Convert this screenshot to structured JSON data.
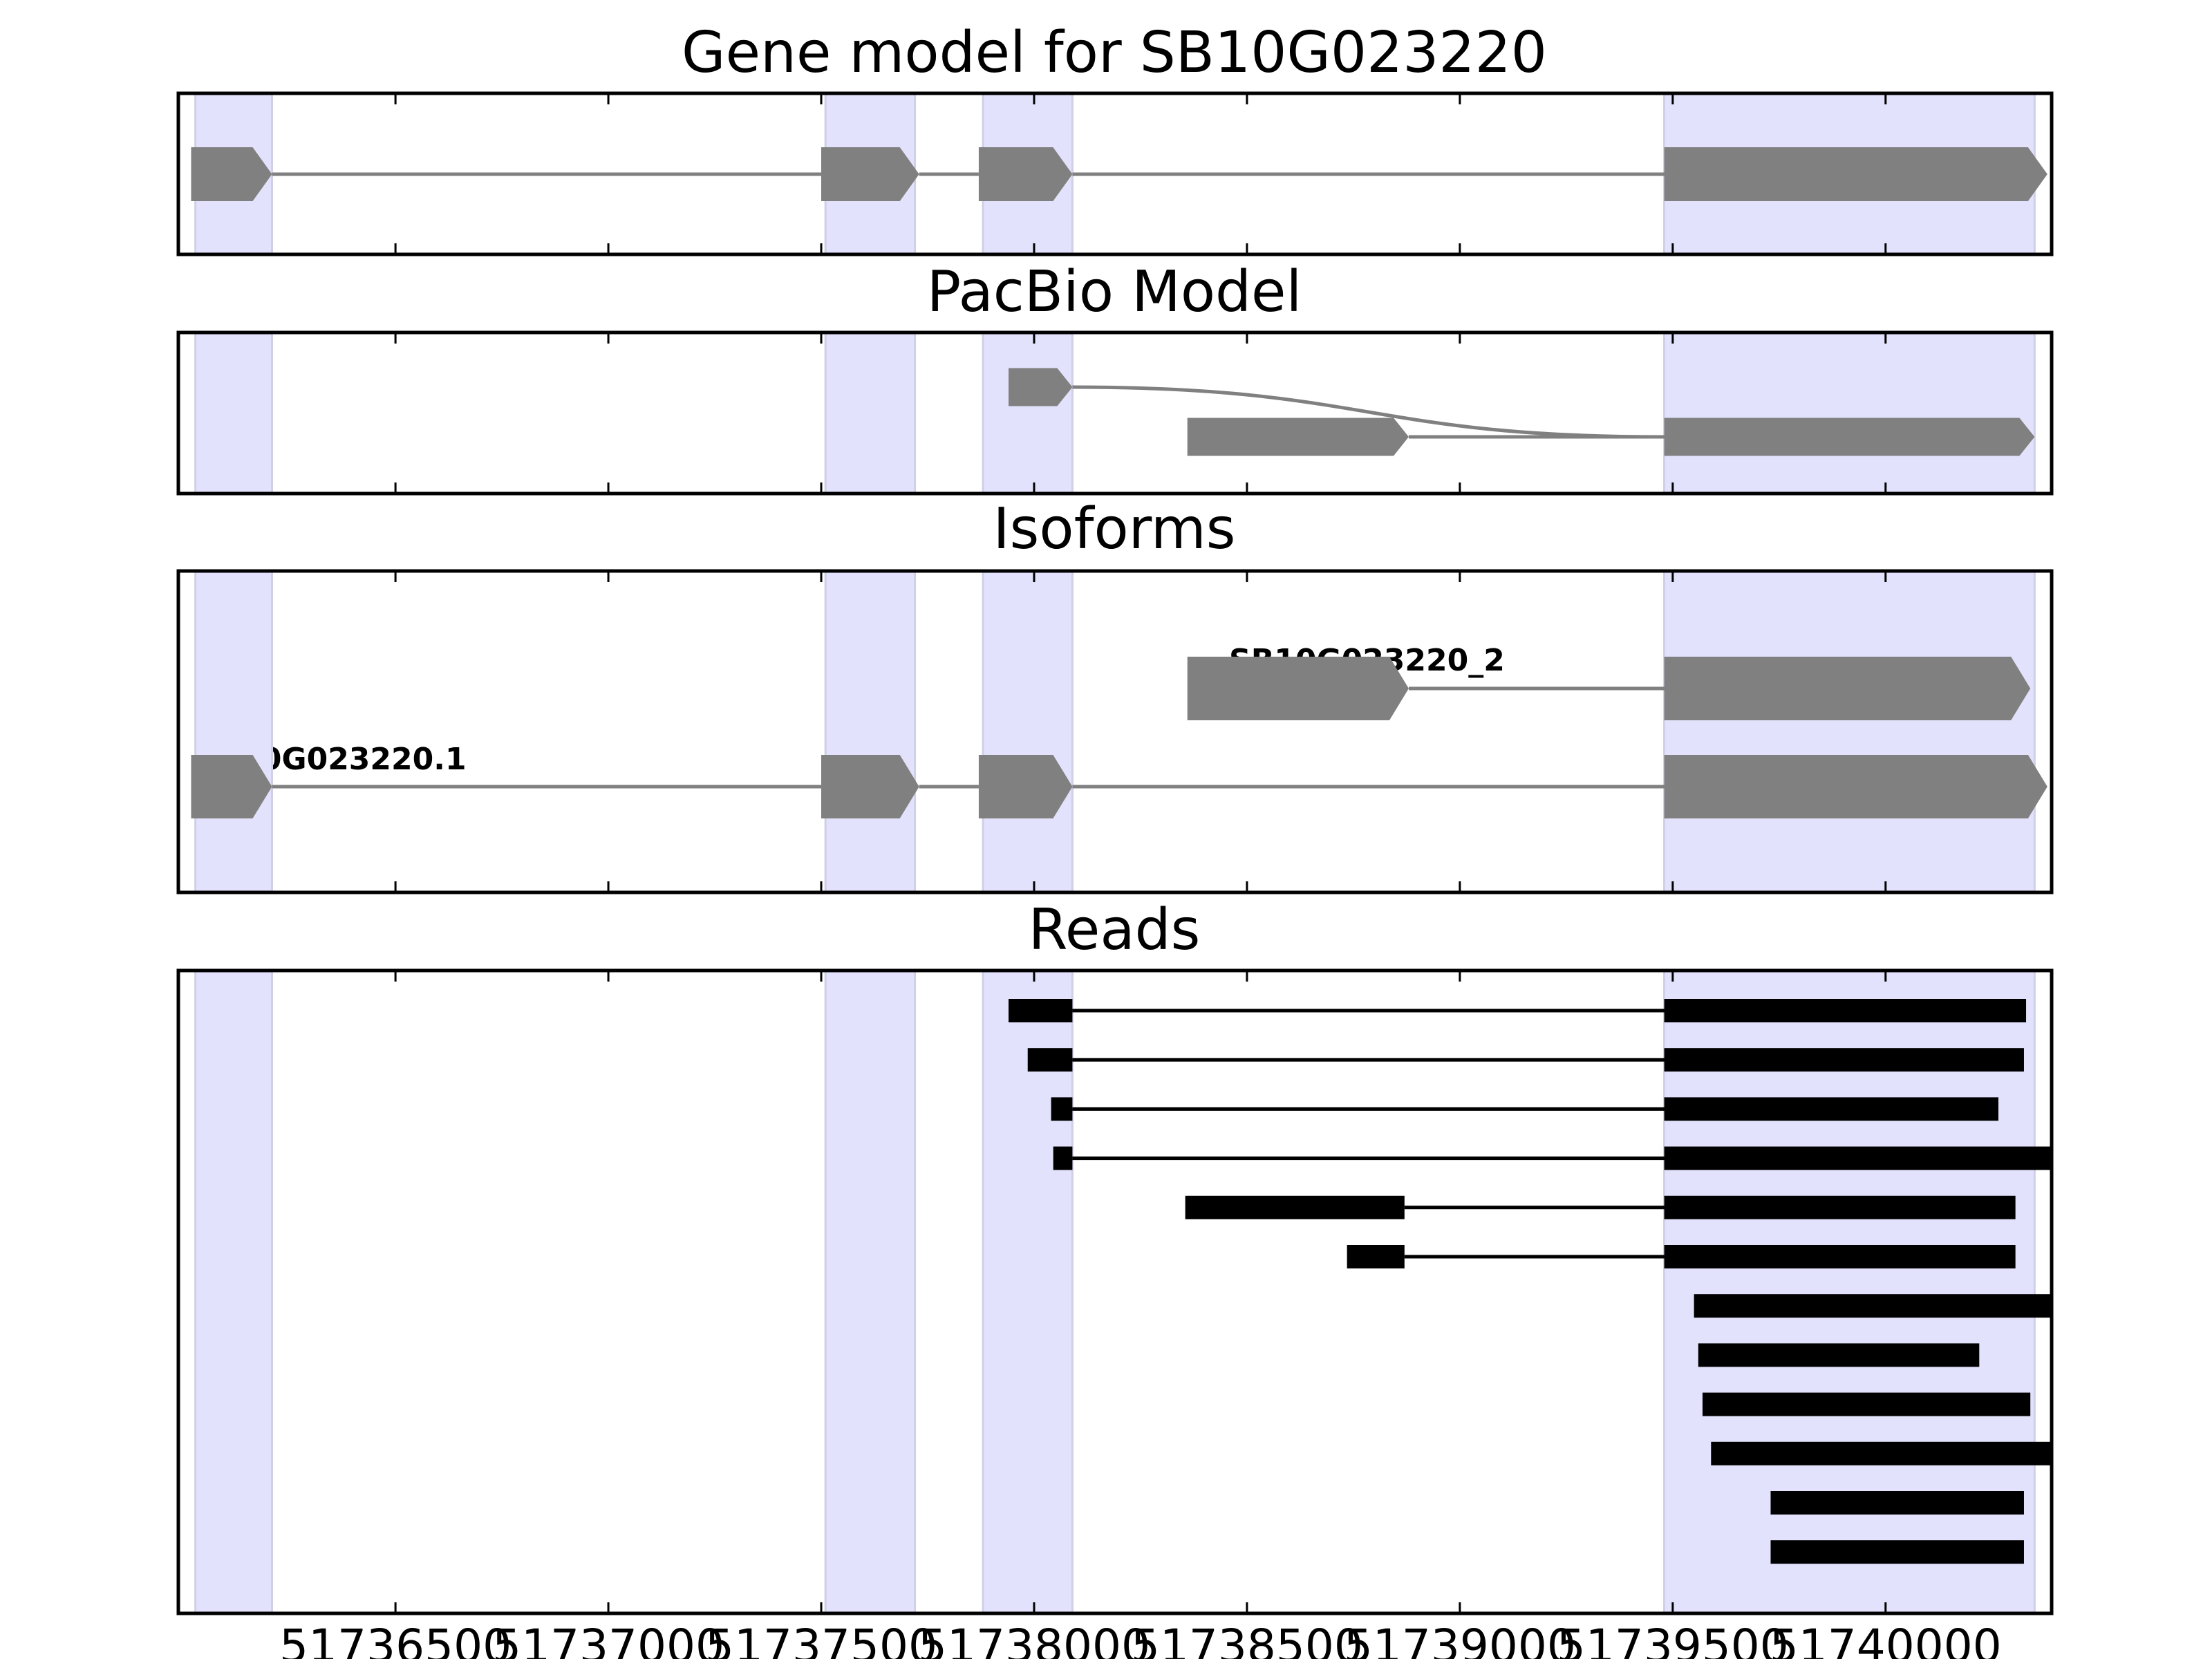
{
  "chart_data": {
    "type": "gene-model",
    "x_range": [
      51735990,
      51740390
    ],
    "x_ticks": [
      51736500,
      51737000,
      51737500,
      51738000,
      51738500,
      51739000,
      51739500,
      51740000
    ],
    "x_tick_labels": [
      "51736500",
      "51737000",
      "51737500",
      "51738000",
      "51738500",
      "51739000",
      "51739500",
      "51740000"
    ],
    "exon_bands": [
      [
        51736030,
        51736210
      ],
      [
        51737510,
        51737720
      ],
      [
        51737880,
        51738090
      ],
      [
        51739480,
        51740350
      ]
    ],
    "colors": {
      "exon_band": "#e2e2fc",
      "model_feature": "#808080",
      "read_feature": "#000000"
    },
    "panels": [
      {
        "key": "gene_model",
        "title": "Gene model for SB10G023220",
        "strand": "+",
        "tracks": [
          {
            "label": "",
            "row": 0,
            "exons": [
              [
                51736020,
                51736210
              ],
              [
                51737500,
                51737730
              ],
              [
                51737870,
                51738090
              ],
              [
                51739480,
                51740380
              ]
            ]
          }
        ]
      },
      {
        "key": "pacbio_model",
        "title": "PacBio Model",
        "strand": "+",
        "tracks": [
          {
            "label": "",
            "row": 1,
            "exons": [
              [
                51737940,
                51738090
              ]
            ],
            "joins_to_row": 0
          },
          {
            "label": "",
            "row": 0,
            "exons": [
              [
                51738360,
                51738880
              ],
              [
                51739480,
                51740350
              ]
            ]
          }
        ]
      },
      {
        "key": "isoforms",
        "title": "Isoforms",
        "strand": "+",
        "tracks": [
          {
            "label": "SB10G023220_2",
            "row": 1,
            "exons": [
              [
                51738360,
                51738880
              ],
              [
                51739480,
                51740340
              ]
            ]
          },
          {
            "label": "SB10G023220.1",
            "row": 0,
            "exons": [
              [
                51736020,
                51736210
              ],
              [
                51737500,
                51737730
              ],
              [
                51737870,
                51738090
              ],
              [
                51739480,
                51740380
              ]
            ]
          }
        ]
      },
      {
        "key": "reads",
        "title": "Reads",
        "strand": "none",
        "tracks": [
          {
            "label": "",
            "exons": [
              [
                51737940,
                51738090
              ],
              [
                51739480,
                51740330
              ]
            ]
          },
          {
            "label": "",
            "exons": [
              [
                51737985,
                51738090
              ],
              [
                51739480,
                51740325
              ]
            ]
          },
          {
            "label": "",
            "exons": [
              [
                51738040,
                51738090
              ],
              [
                51739480,
                51740265
              ]
            ]
          },
          {
            "label": "",
            "exons": [
              [
                51738045,
                51738090
              ],
              [
                51739480,
                51740390
              ]
            ]
          },
          {
            "label": "",
            "exons": [
              [
                51738355,
                51738870
              ],
              [
                51739480,
                51740305
              ]
            ]
          },
          {
            "label": "",
            "exons": [
              [
                51738735,
                51738870
              ],
              [
                51739480,
                51740305
              ]
            ]
          },
          {
            "label": "",
            "exons": [
              [
                51739550,
                51740390
              ]
            ]
          },
          {
            "label": "",
            "exons": [
              [
                51739560,
                51740220
              ]
            ]
          },
          {
            "label": "",
            "exons": [
              [
                51739570,
                51740340
              ]
            ]
          },
          {
            "label": "",
            "exons": [
              [
                51739590,
                51740390
              ]
            ]
          },
          {
            "label": "",
            "exons": [
              [
                51739730,
                51740325
              ]
            ]
          },
          {
            "label": "",
            "exons": [
              [
                51739730,
                51740325
              ]
            ]
          }
        ]
      }
    ]
  }
}
